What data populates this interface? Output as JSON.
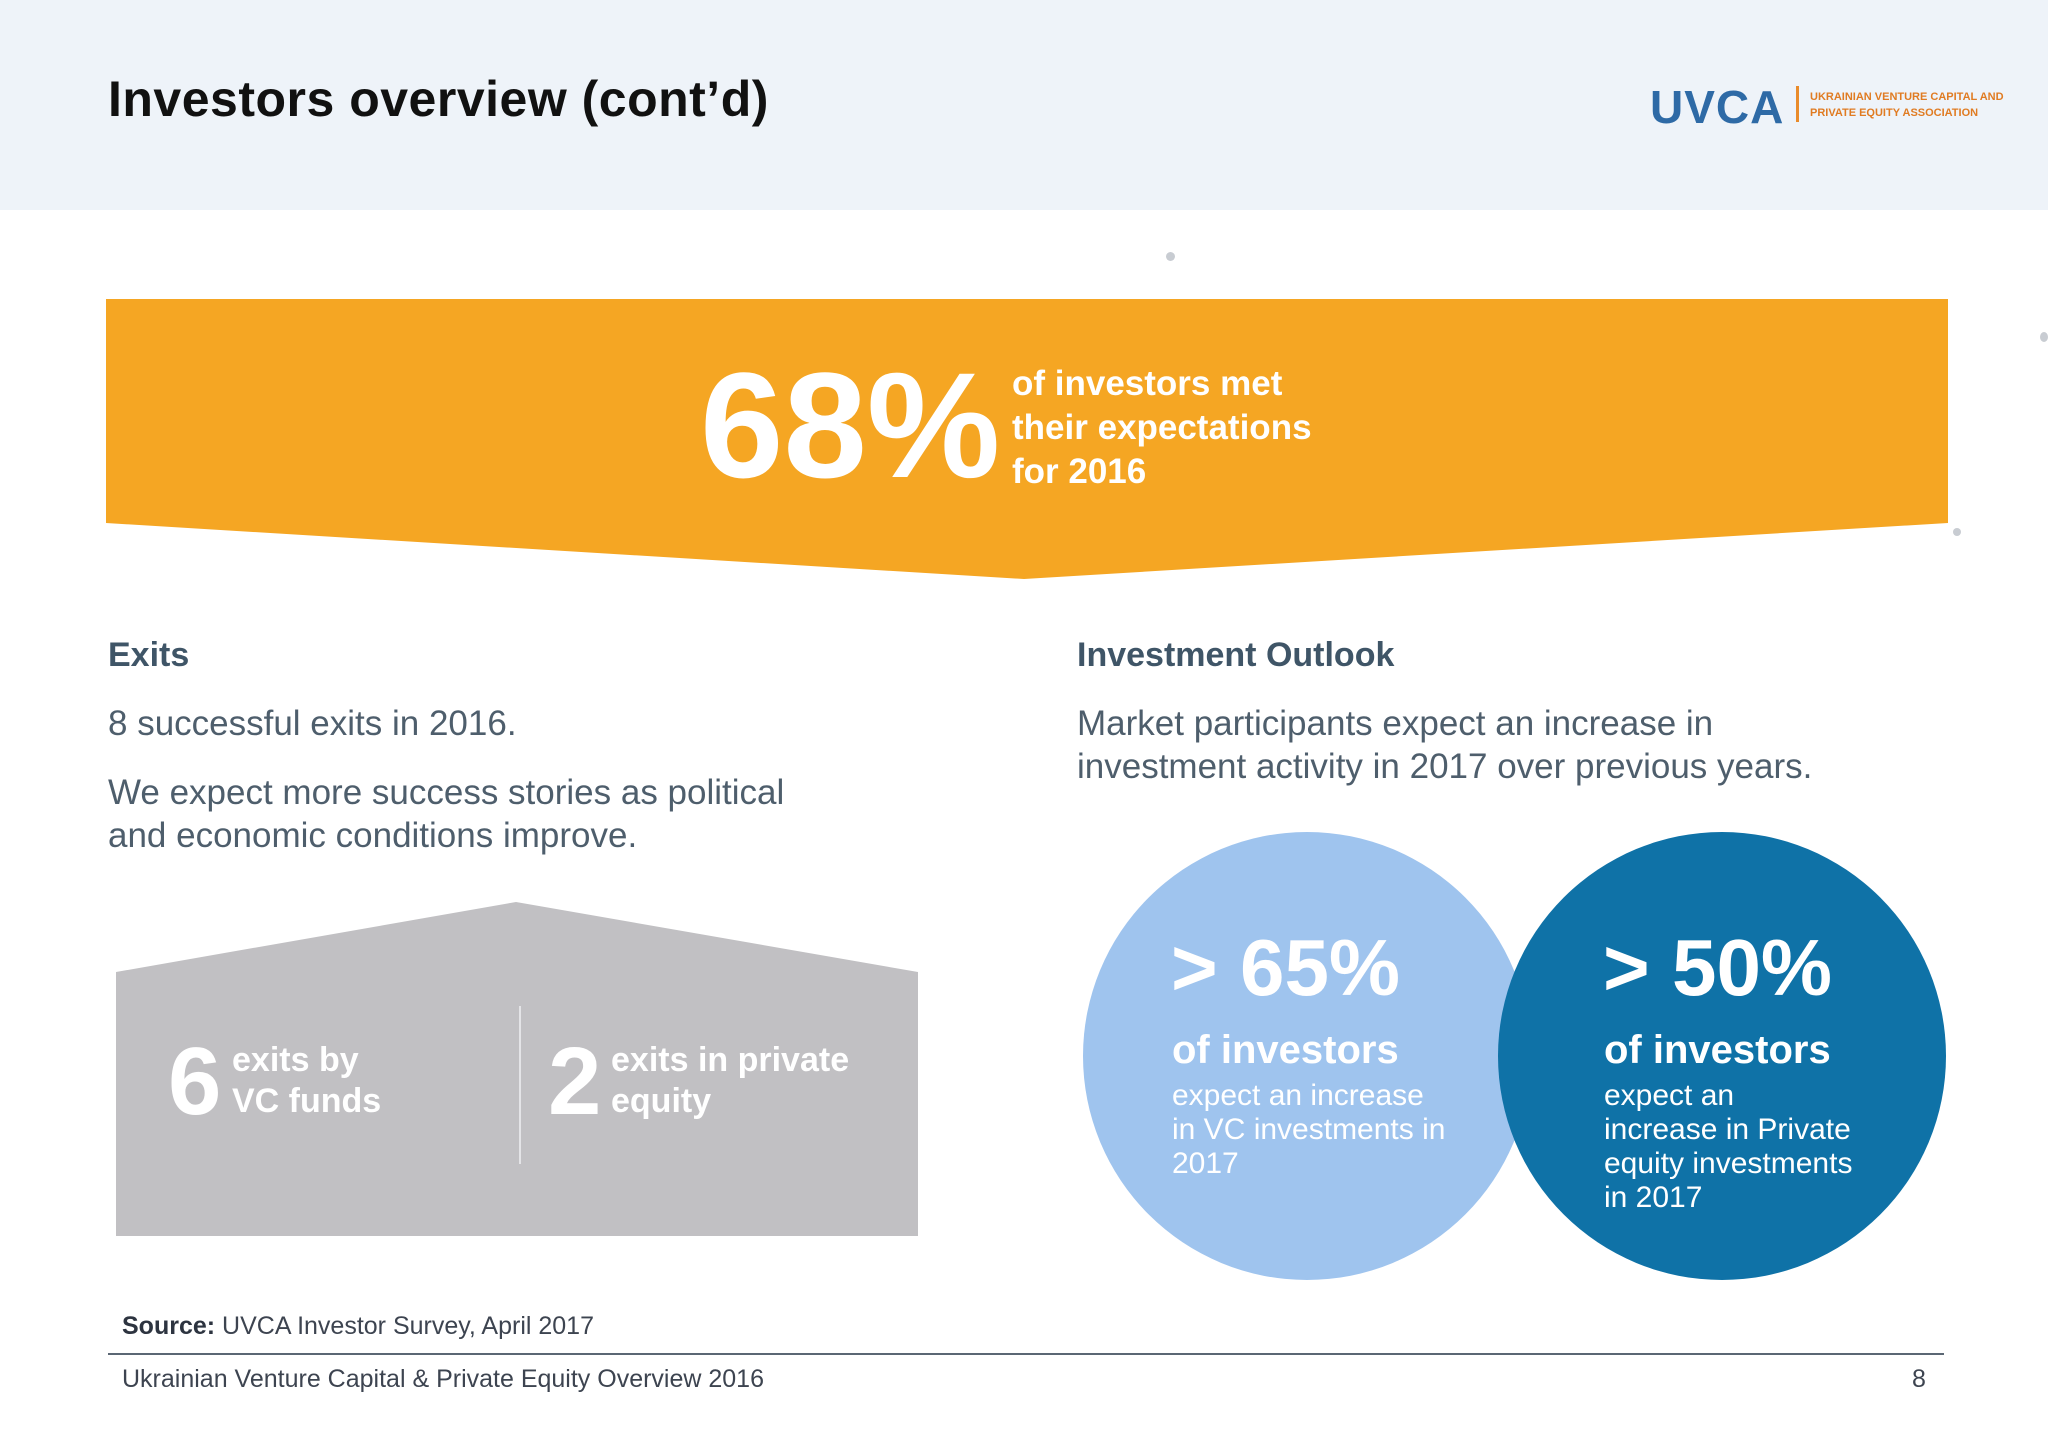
{
  "header": {
    "title": "Investors overview (cont’d)",
    "logo_text": "UVCA",
    "logo_subtitle_line1": "UKRAINIAN VENTURE CAPITAL AND",
    "logo_subtitle_line2": "PRIVATE EQUITY ASSOCIATION"
  },
  "banner": {
    "big_stat": "68%",
    "line1": "of investors met",
    "line2": "their expectations",
    "line3": "for 2016",
    "color": "#f5a623"
  },
  "exits": {
    "title": "Exits",
    "para1": "8 successful exits in 2016.",
    "para2_line1": "We expect more success stories as political",
    "para2_line2": "and economic conditions improve.",
    "vc_number": "6",
    "vc_line1": "exits by",
    "vc_line2": "VC funds",
    "pe_number": "2",
    "pe_line1": "exits in private",
    "pe_line2": "equity",
    "box_color": "#c1c0c3"
  },
  "outlook": {
    "title": "Investment Outlook",
    "para_line1": "Market participants expect an increase in",
    "para_line2": "investment activity in 2017 over previous years.",
    "vc_circle": {
      "stat": "> 65%",
      "subtitle": "of investors",
      "desc_line1": "expect an increase",
      "desc_line2": "in VC investments in",
      "desc_line3": "2017",
      "color": "#9fc4ee"
    },
    "pe_circle": {
      "stat": "> 50%",
      "subtitle": "of investors",
      "desc_line1": "expect an",
      "desc_line2": "increase in Private",
      "desc_line3": "equity investments",
      "desc_line4": "in 2017",
      "color": "#0f72a7"
    }
  },
  "footer": {
    "source_label": "Source:",
    "source_text": "UVCA Investor Survey, April 2017",
    "document_title": "Ukrainian Venture Capital & Private Equity Overview 2016",
    "page_number": "8"
  }
}
